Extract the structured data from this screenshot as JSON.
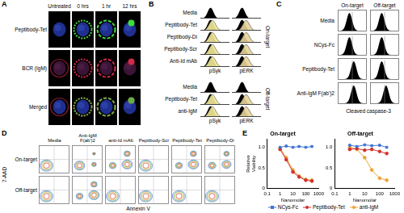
{
  "figure": {
    "A": {
      "letter": "A",
      "columns": [
        "Untreated",
        "0 hrs",
        "1 hr",
        "12 hrs"
      ],
      "rows": [
        "Peptibody-Tet",
        "BCR (IgM)",
        "Merged"
      ]
    },
    "B": {
      "letter": "B",
      "x_labels": [
        "pSyk",
        "pERK"
      ],
      "groups": [
        {
          "label": "On-target",
          "rows": [
            "Media",
            "Peptibody-Tet",
            "Peptibody-Di",
            "Peptibody-Scr",
            "Anti-Id mAb"
          ]
        },
        {
          "label": "Off-target",
          "rows": [
            "Media",
            "Peptibody-Tet",
            "anti-IgM"
          ]
        }
      ]
    },
    "C": {
      "letter": "C",
      "columns": [
        "On-target",
        "Off-target"
      ],
      "rows": [
        "Media",
        "NCys-Fc",
        "Peptibody-Tet",
        "Anti-IgM F(ab')2"
      ],
      "x_label": "Cleaved caspase-3"
    },
    "D": {
      "letter": "D",
      "columns": [
        "Media",
        "Anti-IgM F(ab')2",
        "anti-Id mAb",
        "Peptibody-Scr",
        "Peptibody-Tet",
        "Peptibody-Di"
      ],
      "rows": [
        "On-target",
        "Off-target"
      ],
      "y_label": "7-AAD",
      "x_label": "Annexin V"
    },
    "E": {
      "letter": "E"
    }
  },
  "chart_data": [
    {
      "type": "line",
      "title": "On-target",
      "x_label": "Nanomolar",
      "y_label": "Relative Viability",
      "log": "x",
      "xlim": [
        0.1,
        1000
      ],
      "xticks": [
        0.1,
        1,
        10,
        100,
        1000
      ],
      "ylim": [
        0,
        1.2
      ],
      "yticks": [
        0,
        0.5,
        {
          "value": 1,
          "label": "1.0"
        }
      ],
      "grid": false,
      "legend": "bottom",
      "x": [
        1,
        3,
        10,
        30,
        100,
        300
      ],
      "series": [
        {
          "name": "NCys-Fc",
          "color": "#3f73d4",
          "marker": "square",
          "values": [
            1.0,
            1.03,
            1.0,
            1.02,
            1.0,
            1.02
          ]
        },
        {
          "name": "Peptibody-Tet",
          "color": "#d2302c",
          "marker": "circle",
          "values": [
            0.95,
            0.7,
            0.4,
            0.28,
            0.2,
            0.18
          ]
        },
        {
          "name": "anti-IgM",
          "color": "#eba236",
          "marker": "circle",
          "values": [
            0.98,
            0.75,
            0.45,
            0.3,
            0.22,
            0.2
          ]
        }
      ]
    },
    {
      "type": "line",
      "title": "Off-target",
      "x_label": "Nanomolar",
      "log": "x",
      "xlim": [
        0.1,
        1000
      ],
      "xticks": [
        0.1,
        1,
        10,
        100,
        1000
      ],
      "ylim": [
        0,
        1.2
      ],
      "yticks": [
        0,
        0.5,
        {
          "value": 1,
          "label": "1.0"
        }
      ],
      "grid": false,
      "x": [
        1,
        3,
        10,
        30,
        100,
        300
      ],
      "series": [
        {
          "name": "NCys-Fc",
          "color": "#3f73d4",
          "marker": "square",
          "values": [
            1.05,
            1.02,
            1.06,
            1.04,
            1.05,
            1.0
          ]
        },
        {
          "name": "Peptibody-Tet",
          "color": "#d2302c",
          "marker": "circle",
          "values": [
            0.95,
            0.97,
            0.93,
            0.95,
            0.9,
            0.85
          ]
        },
        {
          "name": "anti-IgM",
          "color": "#eba236",
          "marker": "circle",
          "values": [
            1.0,
            0.95,
            0.75,
            0.45,
            0.25,
            0.2
          ]
        }
      ]
    }
  ]
}
